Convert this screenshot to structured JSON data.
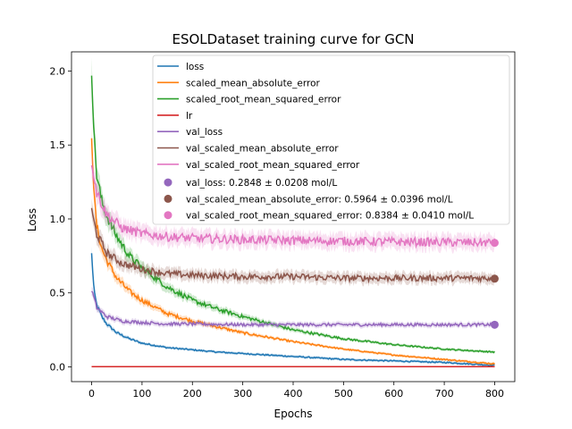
{
  "chart_data": {
    "type": "line",
    "title": "ESOLDataset training curve for GCN",
    "xlabel": "Epochs",
    "ylabel": "Loss",
    "xlim": [
      -40,
      840
    ],
    "ylim": [
      -0.1,
      2.13
    ],
    "xticks": [
      0,
      100,
      200,
      300,
      400,
      500,
      600,
      700,
      800
    ],
    "yticks": [
      0.0,
      0.5,
      1.0,
      1.5,
      2.0
    ],
    "grid": false,
    "legend_position": "top-right",
    "series": [
      {
        "name": "loss",
        "color": "#1f77b4",
        "band": true,
        "points": [
          [
            0,
            0.76
          ],
          [
            5,
            0.5
          ],
          [
            10,
            0.42
          ],
          [
            20,
            0.34
          ],
          [
            30,
            0.29
          ],
          [
            50,
            0.23
          ],
          [
            75,
            0.19
          ],
          [
            100,
            0.16
          ],
          [
            150,
            0.13
          ],
          [
            200,
            0.115
          ],
          [
            250,
            0.1
          ],
          [
            300,
            0.09
          ],
          [
            400,
            0.07
          ],
          [
            500,
            0.05
          ],
          [
            600,
            0.04
          ],
          [
            700,
            0.03
          ],
          [
            800,
            0.01
          ]
        ]
      },
      {
        "name": "scaled_mean_absolute_error",
        "color": "#ff7f0e",
        "band": true,
        "points": [
          [
            0,
            1.58
          ],
          [
            5,
            1.15
          ],
          [
            10,
            0.95
          ],
          [
            20,
            0.8
          ],
          [
            30,
            0.72
          ],
          [
            50,
            0.6
          ],
          [
            75,
            0.51
          ],
          [
            100,
            0.45
          ],
          [
            150,
            0.36
          ],
          [
            200,
            0.31
          ],
          [
            250,
            0.27
          ],
          [
            300,
            0.23
          ],
          [
            400,
            0.17
          ],
          [
            500,
            0.12
          ],
          [
            600,
            0.08
          ],
          [
            700,
            0.05
          ],
          [
            800,
            0.02
          ]
        ]
      },
      {
        "name": "scaled_root_mean_squared_error",
        "color": "#2ca02c",
        "band": true,
        "points": [
          [
            0,
            2.03
          ],
          [
            5,
            1.55
          ],
          [
            10,
            1.3
          ],
          [
            20,
            1.12
          ],
          [
            30,
            1.02
          ],
          [
            50,
            0.88
          ],
          [
            75,
            0.75
          ],
          [
            100,
            0.67
          ],
          [
            150,
            0.54
          ],
          [
            200,
            0.45
          ],
          [
            250,
            0.39
          ],
          [
            300,
            0.34
          ],
          [
            400,
            0.25
          ],
          [
            500,
            0.19
          ],
          [
            600,
            0.15
          ],
          [
            700,
            0.12
          ],
          [
            800,
            0.1
          ]
        ]
      },
      {
        "name": "lr",
        "color": "#d62728",
        "band": false,
        "points": [
          [
            0,
            0.001
          ],
          [
            800,
            0.001
          ]
        ]
      },
      {
        "name": "val_loss",
        "color": "#9467bd",
        "band": true,
        "points": [
          [
            0,
            0.52
          ],
          [
            10,
            0.4
          ],
          [
            30,
            0.34
          ],
          [
            60,
            0.31
          ],
          [
            100,
            0.3
          ],
          [
            150,
            0.29
          ],
          [
            200,
            0.29
          ],
          [
            300,
            0.285
          ],
          [
            400,
            0.285
          ],
          [
            500,
            0.285
          ],
          [
            600,
            0.285
          ],
          [
            700,
            0.285
          ],
          [
            800,
            0.285
          ]
        ]
      },
      {
        "name": "val_scaled_mean_absolute_error",
        "color": "#8c564b",
        "band": true,
        "points": [
          [
            0,
            1.05
          ],
          [
            10,
            0.9
          ],
          [
            30,
            0.77
          ],
          [
            60,
            0.7
          ],
          [
            100,
            0.66
          ],
          [
            150,
            0.63
          ],
          [
            200,
            0.62
          ],
          [
            300,
            0.61
          ],
          [
            400,
            0.61
          ],
          [
            500,
            0.6
          ],
          [
            600,
            0.6
          ],
          [
            700,
            0.6
          ],
          [
            800,
            0.6
          ]
        ]
      },
      {
        "name": "val_scaled_root_mean_squared_error",
        "color": "#e377c2",
        "band": true,
        "points": [
          [
            0,
            1.4
          ],
          [
            10,
            1.18
          ],
          [
            30,
            1.03
          ],
          [
            60,
            0.94
          ],
          [
            100,
            0.9
          ],
          [
            150,
            0.88
          ],
          [
            200,
            0.87
          ],
          [
            300,
            0.86
          ],
          [
            400,
            0.855
          ],
          [
            500,
            0.85
          ],
          [
            600,
            0.845
          ],
          [
            700,
            0.842
          ],
          [
            800,
            0.84
          ]
        ]
      }
    ],
    "final_markers": [
      {
        "name": "val_loss: 0.2848 ± 0.0208 mol/L",
        "x": 800,
        "y": 0.2848,
        "color": "#9467bd"
      },
      {
        "name": "val_scaled_mean_absolute_error: 0.5964 ± 0.0396 mol/L",
        "x": 800,
        "y": 0.5964,
        "color": "#8c564b"
      },
      {
        "name": "val_scaled_root_mean_squared_error: 0.8384 ± 0.0410 mol/L",
        "x": 800,
        "y": 0.8384,
        "color": "#e377c2"
      }
    ]
  }
}
